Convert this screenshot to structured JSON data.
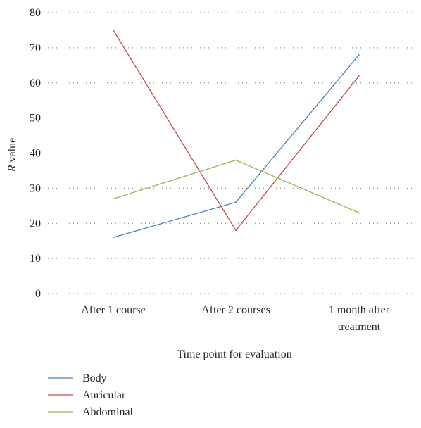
{
  "chart_data": {
    "type": "line",
    "categories": [
      [
        "After 1 course"
      ],
      [
        "After 2 courses"
      ],
      [
        "1 month after",
        "treatment"
      ]
    ],
    "series": [
      {
        "name": "Body",
        "values": [
          16,
          26,
          68
        ],
        "color": "#4a7ebb"
      },
      {
        "name": "Auricular",
        "values": [
          75,
          18,
          62
        ],
        "color": "#be4b48"
      },
      {
        "name": "Abdominal",
        "values": [
          27,
          38,
          23
        ],
        "color": "#98b954"
      }
    ],
    "xlabel": "Time point for evaluation",
    "ylabel": {
      "italic": "R",
      "rest": " value"
    },
    "ylim": [
      0,
      80
    ],
    "yticks": [
      0,
      10,
      20,
      30,
      40,
      50,
      60,
      70,
      80
    ],
    "grid": "horizontal dotted",
    "legend_position": "bottom-left"
  }
}
